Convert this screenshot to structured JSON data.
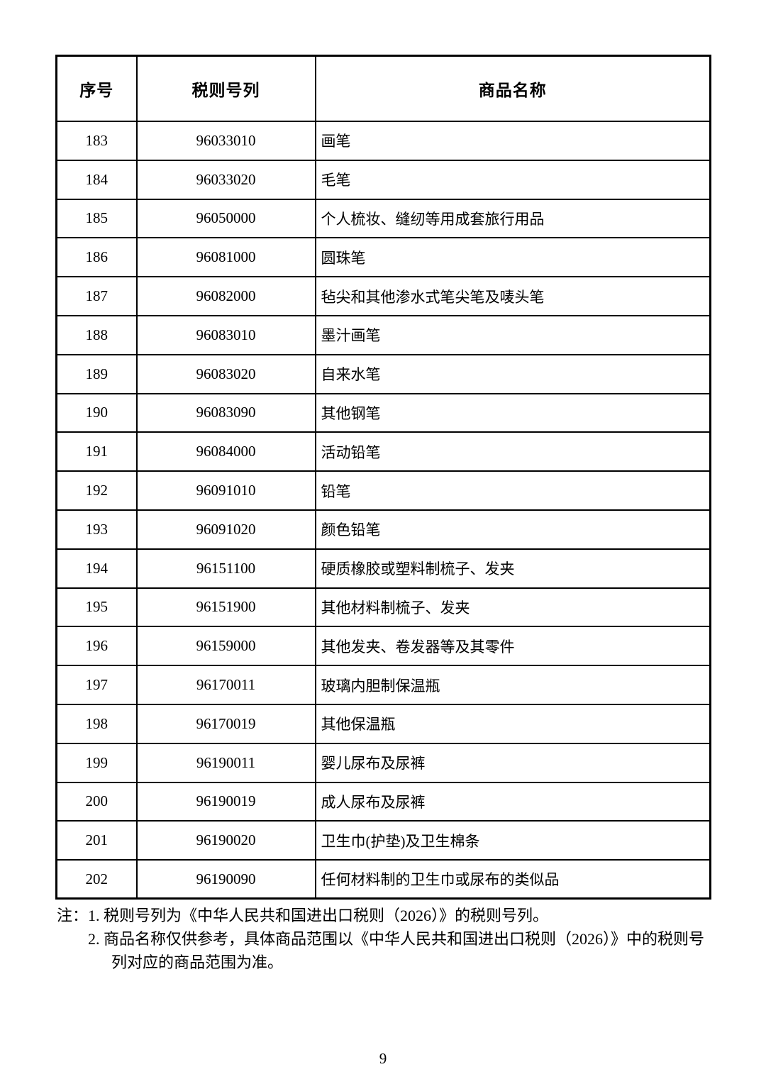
{
  "table": {
    "headers": [
      "序号",
      "税则号列",
      "商品名称"
    ],
    "rows": [
      {
        "no": "183",
        "code": "96033010",
        "name": "画笔"
      },
      {
        "no": "184",
        "code": "96033020",
        "name": "毛笔"
      },
      {
        "no": "185",
        "code": "96050000",
        "name": "个人梳妆、缝纫等用成套旅行用品"
      },
      {
        "no": "186",
        "code": "96081000",
        "name": "圆珠笔"
      },
      {
        "no": "187",
        "code": "96082000",
        "name": "毡尖和其他渗水式笔尖笔及唛头笔"
      },
      {
        "no": "188",
        "code": "96083010",
        "name": "墨汁画笔"
      },
      {
        "no": "189",
        "code": "96083020",
        "name": "自来水笔"
      },
      {
        "no": "190",
        "code": "96083090",
        "name": "其他钢笔"
      },
      {
        "no": "191",
        "code": "96084000",
        "name": "活动铅笔"
      },
      {
        "no": "192",
        "code": "96091010",
        "name": "铅笔"
      },
      {
        "no": "193",
        "code": "96091020",
        "name": "颜色铅笔"
      },
      {
        "no": "194",
        "code": "96151100",
        "name": "硬质橡胶或塑料制梳子、发夹"
      },
      {
        "no": "195",
        "code": "96151900",
        "name": "其他材料制梳子、发夹"
      },
      {
        "no": "196",
        "code": "96159000",
        "name": "其他发夹、卷发器等及其零件"
      },
      {
        "no": "197",
        "code": "96170011",
        "name": "玻璃内胆制保温瓶"
      },
      {
        "no": "198",
        "code": "96170019",
        "name": "其他保温瓶"
      },
      {
        "no": "199",
        "code": "96190011",
        "name": "婴儿尿布及尿裤"
      },
      {
        "no": "200",
        "code": "96190019",
        "name": "成人尿布及尿裤"
      },
      {
        "no": "201",
        "code": "96190020",
        "name": "卫生巾(护垫)及卫生棉条"
      },
      {
        "no": "202",
        "code": "96190090",
        "name": "任何材料制的卫生巾或尿布的类似品"
      }
    ]
  },
  "notes": {
    "label": "注：",
    "items": [
      "1. 税则号列为《中华人民共和国进出口税则（2026）》的税则号列。",
      "2. 商品名称仅供参考，具体商品范围以《中华人民共和国进出口税则（2026）》中的税则号列对应的商品范围为准。"
    ]
  },
  "page_number": "9"
}
